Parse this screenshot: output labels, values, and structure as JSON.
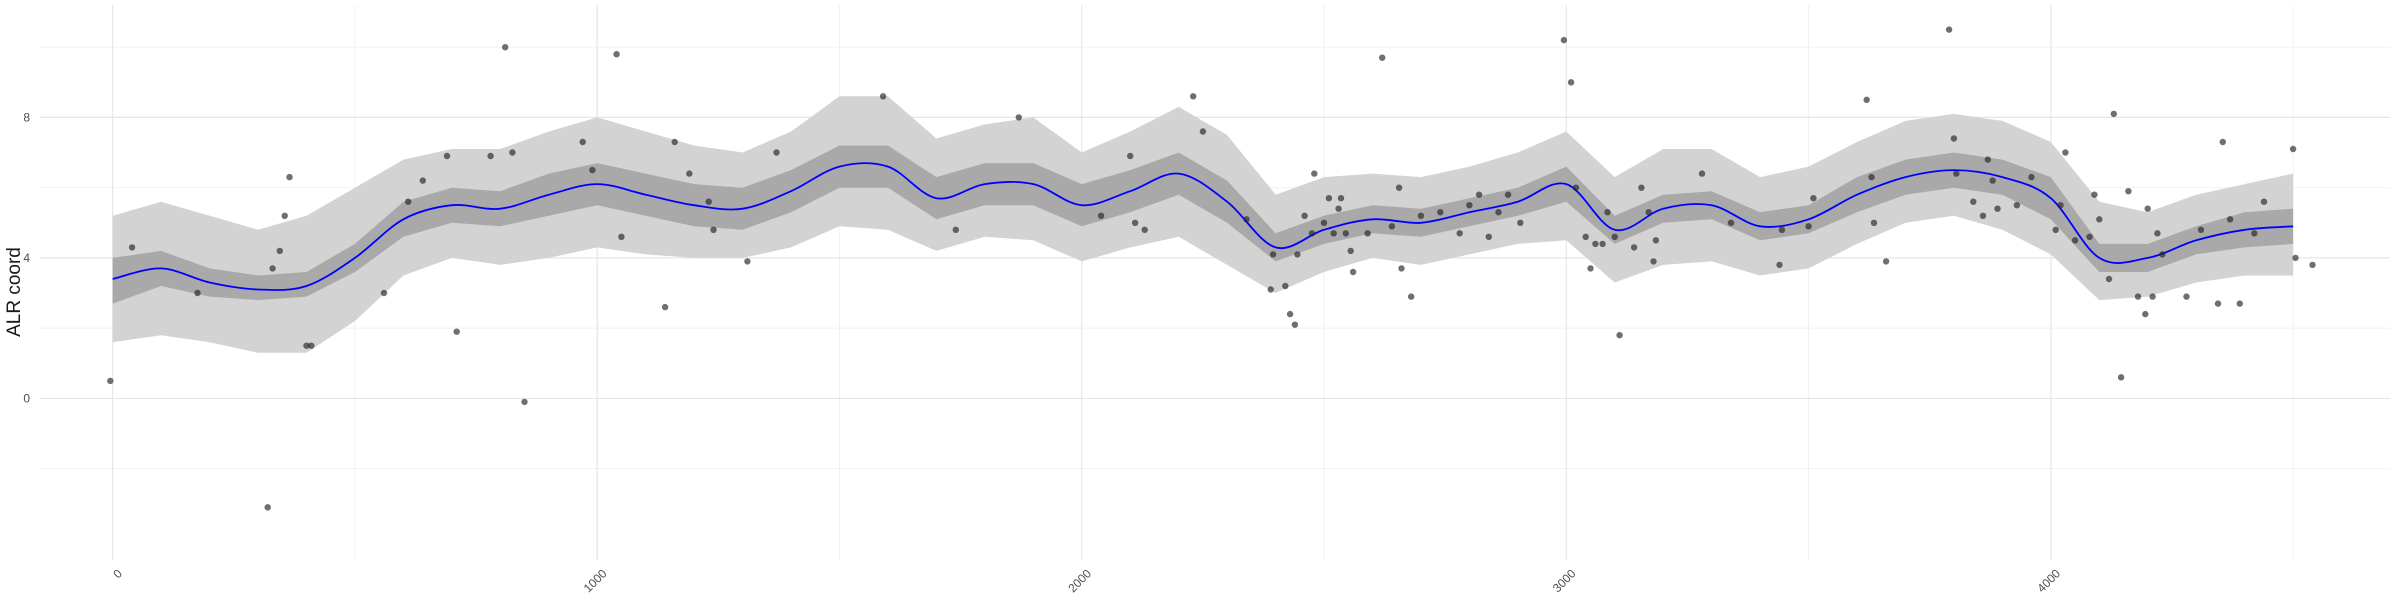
{
  "chart_data": {
    "type": "scatter",
    "title": "",
    "xlabel": "",
    "ylabel": "ALR coord",
    "xlim": [
      -150,
      4700
    ],
    "ylim": [
      -4.6,
      11.2
    ],
    "x_ticks": [
      0,
      1000,
      2000,
      3000,
      4000
    ],
    "x_tick_labels": [
      "0",
      "1000",
      "2000",
      "3000",
      "4000"
    ],
    "y_ticks": [
      0,
      4,
      8
    ],
    "y_tick_labels": [
      "0",
      "4",
      "8"
    ],
    "grid": true,
    "legend": "none",
    "colors": {
      "points": "#222222",
      "smooth_line": "#0000ff",
      "outer_band": "#d3d3d3",
      "inner_band": "#a9a9a9",
      "grid_major": "#e6e6e6",
      "grid_minor": "#f2f2f2"
    },
    "smooth": {
      "x": [
        0,
        100,
        200,
        300,
        400,
        500,
        600,
        700,
        800,
        900,
        1000,
        1100,
        1200,
        1300,
        1400,
        1500,
        1600,
        1700,
        1800,
        1900,
        2000,
        2100,
        2200,
        2300,
        2400,
        2500,
        2600,
        2700,
        2800,
        2900,
        3000,
        3100,
        3200,
        3300,
        3400,
        3500,
        3600,
        3700,
        3800,
        3900,
        4000,
        4100,
        4200,
        4300,
        4400,
        4500
      ],
      "y": [
        3.4,
        3.7,
        3.3,
        3.1,
        3.2,
        4.0,
        5.1,
        5.5,
        5.4,
        5.8,
        6.1,
        5.8,
        5.5,
        5.4,
        5.9,
        6.6,
        6.6,
        5.7,
        6.1,
        6.1,
        5.5,
        5.9,
        6.4,
        5.6,
        4.3,
        4.8,
        5.1,
        5.0,
        5.3,
        5.6,
        6.1,
        4.8,
        5.4,
        5.5,
        4.9,
        5.1,
        5.8,
        6.3,
        6.5,
        6.3,
        5.7,
        4.0,
        4.0,
        4.5,
        4.8,
        4.9
      ],
      "inner_lower": [
        2.7,
        3.2,
        2.9,
        2.8,
        2.9,
        3.6,
        4.6,
        5.0,
        4.9,
        5.2,
        5.5,
        5.2,
        4.9,
        4.8,
        5.3,
        6.0,
        6.0,
        5.1,
        5.5,
        5.5,
        4.9,
        5.3,
        5.8,
        5.0,
        3.9,
        4.4,
        4.7,
        4.6,
        4.9,
        5.2,
        5.6,
        4.4,
        5.0,
        5.1,
        4.5,
        4.7,
        5.3,
        5.8,
        6.0,
        5.8,
        5.1,
        3.6,
        3.6,
        4.1,
        4.3,
        4.4
      ],
      "inner_upper": [
        4.0,
        4.2,
        3.7,
        3.5,
        3.6,
        4.4,
        5.6,
        6.0,
        5.9,
        6.4,
        6.7,
        6.4,
        6.1,
        6.0,
        6.5,
        7.2,
        7.2,
        6.3,
        6.7,
        6.7,
        6.1,
        6.5,
        7.0,
        6.2,
        4.7,
        5.2,
        5.5,
        5.4,
        5.7,
        6.0,
        6.6,
        5.2,
        5.8,
        5.9,
        5.3,
        5.5,
        6.3,
        6.8,
        7.0,
        6.8,
        6.3,
        4.4,
        4.4,
        4.9,
        5.3,
        5.4
      ],
      "outer_lower": [
        1.6,
        1.8,
        1.6,
        1.3,
        1.3,
        2.2,
        3.5,
        4.0,
        3.8,
        4.0,
        4.3,
        4.1,
        4.0,
        4.0,
        4.3,
        4.9,
        4.8,
        4.2,
        4.6,
        4.5,
        3.9,
        4.3,
        4.6,
        3.8,
        3.0,
        3.6,
        4.0,
        3.8,
        4.1,
        4.4,
        4.5,
        3.3,
        3.8,
        3.9,
        3.5,
        3.7,
        4.4,
        5.0,
        5.2,
        4.8,
        4.1,
        2.8,
        2.9,
        3.3,
        3.5,
        3.5
      ],
      "outer_upper": [
        5.2,
        5.6,
        5.2,
        4.8,
        5.2,
        6.0,
        6.8,
        7.1,
        7.1,
        7.6,
        8.0,
        7.6,
        7.2,
        7.0,
        7.6,
        8.6,
        8.6,
        7.4,
        7.8,
        8.0,
        7.0,
        7.6,
        8.3,
        7.5,
        5.8,
        6.3,
        6.4,
        6.3,
        6.6,
        7.0,
        7.6,
        6.3,
        7.1,
        7.1,
        6.3,
        6.6,
        7.3,
        7.9,
        8.1,
        7.9,
        7.3,
        5.6,
        5.3,
        5.8,
        6.1,
        6.4
      ]
    },
    "points": [
      {
        "x": -5,
        "y": 0.5
      },
      {
        "x": 40,
        "y": 4.3
      },
      {
        "x": 175,
        "y": 3.0
      },
      {
        "x": 320,
        "y": -3.1
      },
      {
        "x": 330,
        "y": 3.7
      },
      {
        "x": 345,
        "y": 4.2
      },
      {
        "x": 355,
        "y": 5.2
      },
      {
        "x": 365,
        "y": 6.3
      },
      {
        "x": 400,
        "y": 1.5
      },
      {
        "x": 410,
        "y": 1.5
      },
      {
        "x": 560,
        "y": 3.0
      },
      {
        "x": 610,
        "y": 5.6
      },
      {
        "x": 640,
        "y": 6.2
      },
      {
        "x": 690,
        "y": 6.9
      },
      {
        "x": 710,
        "y": 1.9
      },
      {
        "x": 780,
        "y": 6.9
      },
      {
        "x": 810,
        "y": 10.0
      },
      {
        "x": 825,
        "y": 7.0
      },
      {
        "x": 850,
        "y": -0.1
      },
      {
        "x": 970,
        "y": 7.3
      },
      {
        "x": 990,
        "y": 6.5
      },
      {
        "x": 1040,
        "y": 9.8
      },
      {
        "x": 1050,
        "y": 4.6
      },
      {
        "x": 1140,
        "y": 2.6
      },
      {
        "x": 1160,
        "y": 7.3
      },
      {
        "x": 1190,
        "y": 6.4
      },
      {
        "x": 1230,
        "y": 5.6
      },
      {
        "x": 1240,
        "y": 4.8
      },
      {
        "x": 1310,
        "y": 3.9
      },
      {
        "x": 1370,
        "y": 7.0
      },
      {
        "x": 1590,
        "y": 8.6
      },
      {
        "x": 1740,
        "y": 4.8
      },
      {
        "x": 1870,
        "y": 8.0
      },
      {
        "x": 2040,
        "y": 5.2
      },
      {
        "x": 2100,
        "y": 6.9
      },
      {
        "x": 2110,
        "y": 5.0
      },
      {
        "x": 2130,
        "y": 4.8
      },
      {
        "x": 2230,
        "y": 8.6
      },
      {
        "x": 2250,
        "y": 7.6
      },
      {
        "x": 2340,
        "y": 5.1
      },
      {
        "x": 2390,
        "y": 3.1
      },
      {
        "x": 2395,
        "y": 4.1
      },
      {
        "x": 2420,
        "y": 3.2
      },
      {
        "x": 2430,
        "y": 2.4
      },
      {
        "x": 2440,
        "y": 2.1
      },
      {
        "x": 2445,
        "y": 4.1
      },
      {
        "x": 2460,
        "y": 5.2
      },
      {
        "x": 2475,
        "y": 4.7
      },
      {
        "x": 2480,
        "y": 6.4
      },
      {
        "x": 2500,
        "y": 5.0
      },
      {
        "x": 2510,
        "y": 5.7
      },
      {
        "x": 2520,
        "y": 4.7
      },
      {
        "x": 2530,
        "y": 5.4
      },
      {
        "x": 2535,
        "y": 5.7
      },
      {
        "x": 2545,
        "y": 4.7
      },
      {
        "x": 2555,
        "y": 4.2
      },
      {
        "x": 2560,
        "y": 3.6
      },
      {
        "x": 2590,
        "y": 4.7
      },
      {
        "x": 2620,
        "y": 9.7
      },
      {
        "x": 2640,
        "y": 4.9
      },
      {
        "x": 2655,
        "y": 6.0
      },
      {
        "x": 2660,
        "y": 3.7
      },
      {
        "x": 2680,
        "y": 2.9
      },
      {
        "x": 2700,
        "y": 5.2
      },
      {
        "x": 2740,
        "y": 5.3
      },
      {
        "x": 2780,
        "y": 4.7
      },
      {
        "x": 2800,
        "y": 5.5
      },
      {
        "x": 2820,
        "y": 5.8
      },
      {
        "x": 2840,
        "y": 4.6
      },
      {
        "x": 2860,
        "y": 5.3
      },
      {
        "x": 2880,
        "y": 5.8
      },
      {
        "x": 2905,
        "y": 5.0
      },
      {
        "x": 2995,
        "y": 10.2
      },
      {
        "x": 3010,
        "y": 9.0
      },
      {
        "x": 3020,
        "y": 6.0
      },
      {
        "x": 3040,
        "y": 4.6
      },
      {
        "x": 3050,
        "y": 3.7
      },
      {
        "x": 3060,
        "y": 4.4
      },
      {
        "x": 3075,
        "y": 4.4
      },
      {
        "x": 3085,
        "y": 5.3
      },
      {
        "x": 3100,
        "y": 4.6
      },
      {
        "x": 3110,
        "y": 1.8
      },
      {
        "x": 3140,
        "y": 4.3
      },
      {
        "x": 3155,
        "y": 6.0
      },
      {
        "x": 3170,
        "y": 5.3
      },
      {
        "x": 3180,
        "y": 3.9
      },
      {
        "x": 3185,
        "y": 4.5
      },
      {
        "x": 3280,
        "y": 6.4
      },
      {
        "x": 3340,
        "y": 5.0
      },
      {
        "x": 3440,
        "y": 3.8
      },
      {
        "x": 3445,
        "y": 4.8
      },
      {
        "x": 3500,
        "y": 4.9
      },
      {
        "x": 3510,
        "y": 5.7
      },
      {
        "x": 3620,
        "y": 8.5
      },
      {
        "x": 3630,
        "y": 6.3
      },
      {
        "x": 3635,
        "y": 5.0
      },
      {
        "x": 3660,
        "y": 3.9
      },
      {
        "x": 3790,
        "y": 10.5
      },
      {
        "x": 3800,
        "y": 7.4
      },
      {
        "x": 3805,
        "y": 6.4
      },
      {
        "x": 3840,
        "y": 5.6
      },
      {
        "x": 3860,
        "y": 5.2
      },
      {
        "x": 3870,
        "y": 6.8
      },
      {
        "x": 3880,
        "y": 6.2
      },
      {
        "x": 3890,
        "y": 5.4
      },
      {
        "x": 3930,
        "y": 5.5
      },
      {
        "x": 3960,
        "y": 6.3
      },
      {
        "x": 4010,
        "y": 4.8
      },
      {
        "x": 4020,
        "y": 5.5
      },
      {
        "x": 4030,
        "y": 7.0
      },
      {
        "x": 4050,
        "y": 4.5
      },
      {
        "x": 4080,
        "y": 4.6
      },
      {
        "x": 4090,
        "y": 5.8
      },
      {
        "x": 4100,
        "y": 5.1
      },
      {
        "x": 4120,
        "y": 3.4
      },
      {
        "x": 4130,
        "y": 8.1
      },
      {
        "x": 4145,
        "y": 0.6
      },
      {
        "x": 4160,
        "y": 5.9
      },
      {
        "x": 4180,
        "y": 2.9
      },
      {
        "x": 4195,
        "y": 2.4
      },
      {
        "x": 4200,
        "y": 5.4
      },
      {
        "x": 4210,
        "y": 2.9
      },
      {
        "x": 4220,
        "y": 4.7
      },
      {
        "x": 4230,
        "y": 4.1
      },
      {
        "x": 4280,
        "y": 2.9
      },
      {
        "x": 4310,
        "y": 4.8
      },
      {
        "x": 4345,
        "y": 2.7
      },
      {
        "x": 4355,
        "y": 7.3
      },
      {
        "x": 4370,
        "y": 5.1
      },
      {
        "x": 4390,
        "y": 2.7
      },
      {
        "x": 4420,
        "y": 4.7
      },
      {
        "x": 4440,
        "y": 5.6
      },
      {
        "x": 4500,
        "y": 7.1
      },
      {
        "x": 4505,
        "y": 4.0
      },
      {
        "x": 4540,
        "y": 3.8
      }
    ]
  }
}
